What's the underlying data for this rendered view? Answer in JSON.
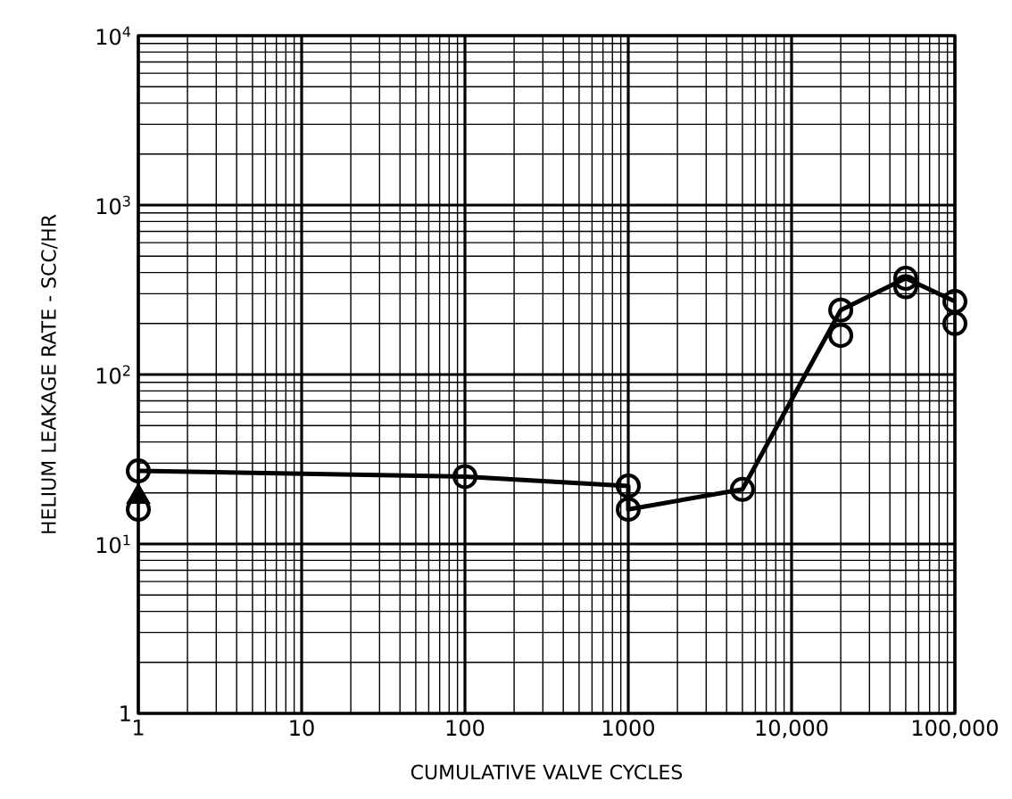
{
  "chart_data": {
    "type": "line",
    "xlabel": "CUMULATIVE VALVE CYCLES",
    "ylabel": "HELIUM LEAKAGE RATE - SCC/HR",
    "log": "xy",
    "grid": true,
    "marker": "circle",
    "line_style": "solid",
    "xlim": [
      1,
      100000
    ],
    "ylim": [
      1,
      10000
    ],
    "xticks": [
      1,
      10,
      100,
      1000,
      {
        "value": 10000,
        "label": "10,000"
      },
      {
        "value": 100000,
        "label": "100,000"
      }
    ],
    "yticks": [
      1,
      {
        "value": 10,
        "label": "10$^{1}$"
      },
      {
        "value": 100,
        "label": "10$^{2}$"
      },
      {
        "value": 1000,
        "label": "10$^{3}$"
      },
      {
        "value": 10000,
        "label": "10$^{4}$"
      }
    ],
    "series": [
      {
        "color": "#000000",
        "x": [
          1,
          100,
          1000,
          1000,
          5000,
          20000,
          50000,
          100000
        ],
        "values": [
          27,
          25,
          22,
          16,
          21,
          240,
          370,
          270
        ]
      },
      {
        "type": "scatter",
        "color": "#000000",
        "x": [
          1,
          20000,
          50000,
          100000
        ],
        "values": [
          16,
          170,
          330,
          200
        ]
      },
      {
        "type": "scatter",
        "color": "#000000",
        "marker": "triangle",
        "x": [
          1
        ],
        "values": [
          19
        ]
      }
    ]
  }
}
